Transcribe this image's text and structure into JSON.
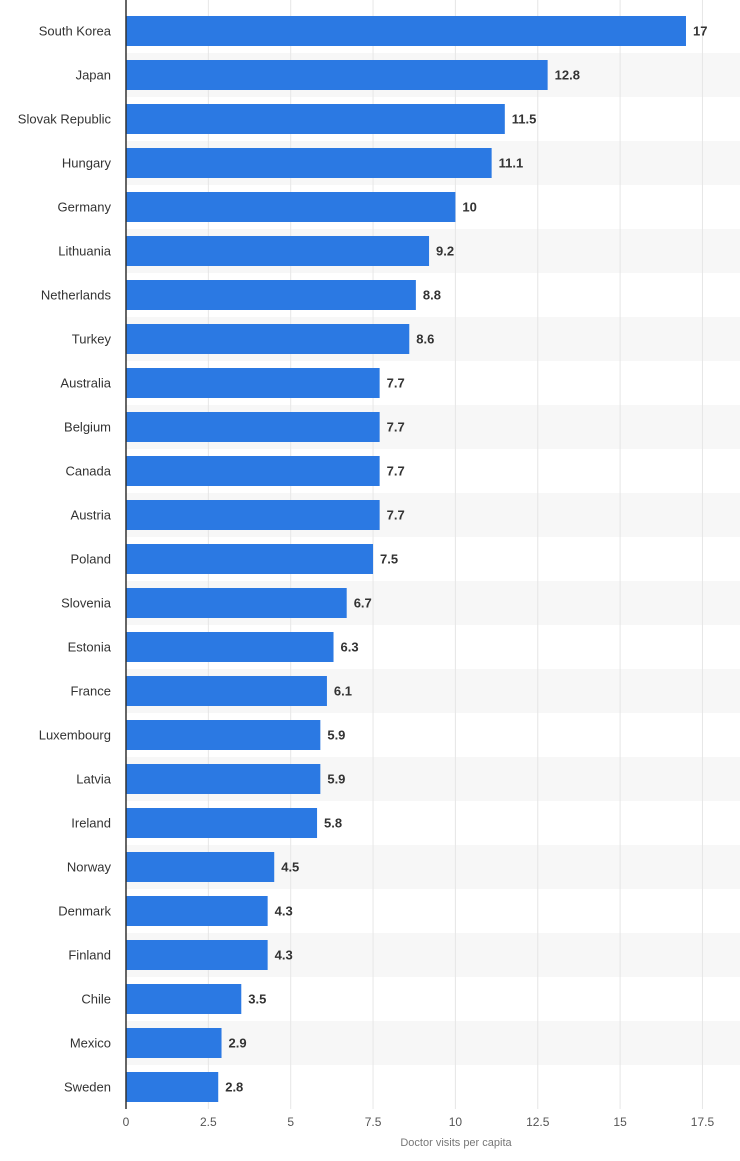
{
  "colors": {
    "bar": "#2b79e3",
    "grid": "#e6e6e6",
    "axis": "#333333",
    "band": "#f7f7f7"
  },
  "chart_data": {
    "type": "bar",
    "orientation": "horizontal",
    "title": "",
    "xlabel": "Doctor visits per capita",
    "ylabel": "",
    "xlim": [
      0,
      18.5
    ],
    "ticks": [
      0,
      2.5,
      5,
      7.5,
      10,
      12.5,
      15,
      17.5
    ],
    "tick_labels": [
      "0",
      "2.5",
      "5",
      "7.5",
      "10",
      "12.5",
      "15",
      "17.5"
    ],
    "grid": true,
    "legend": "none",
    "categories": [
      "South Korea",
      "Japan",
      "Slovak Republic",
      "Hungary",
      "Germany",
      "Lithuania",
      "Netherlands",
      "Turkey",
      "Australia",
      "Belgium",
      "Canada",
      "Austria",
      "Poland",
      "Slovenia",
      "Estonia",
      "France",
      "Luxembourg",
      "Latvia",
      "Ireland",
      "Norway",
      "Denmark",
      "Finland",
      "Chile",
      "Mexico",
      "Sweden"
    ],
    "values": [
      17,
      12.8,
      11.5,
      11.1,
      10,
      9.2,
      8.8,
      8.6,
      7.7,
      7.7,
      7.7,
      7.7,
      7.5,
      6.7,
      6.3,
      6.1,
      5.9,
      5.9,
      5.8,
      4.5,
      4.3,
      4.3,
      3.5,
      2.9,
      2.8
    ],
    "value_labels": [
      "17",
      "12.8",
      "11.5",
      "11.1",
      "10",
      "9.2",
      "8.8",
      "8.6",
      "7.7",
      "7.7",
      "7.7",
      "7.7",
      "7.5",
      "6.7",
      "6.3",
      "6.1",
      "5.9",
      "5.9",
      "5.8",
      "4.5",
      "4.3",
      "4.3",
      "3.5",
      "2.9",
      "2.8"
    ]
  }
}
